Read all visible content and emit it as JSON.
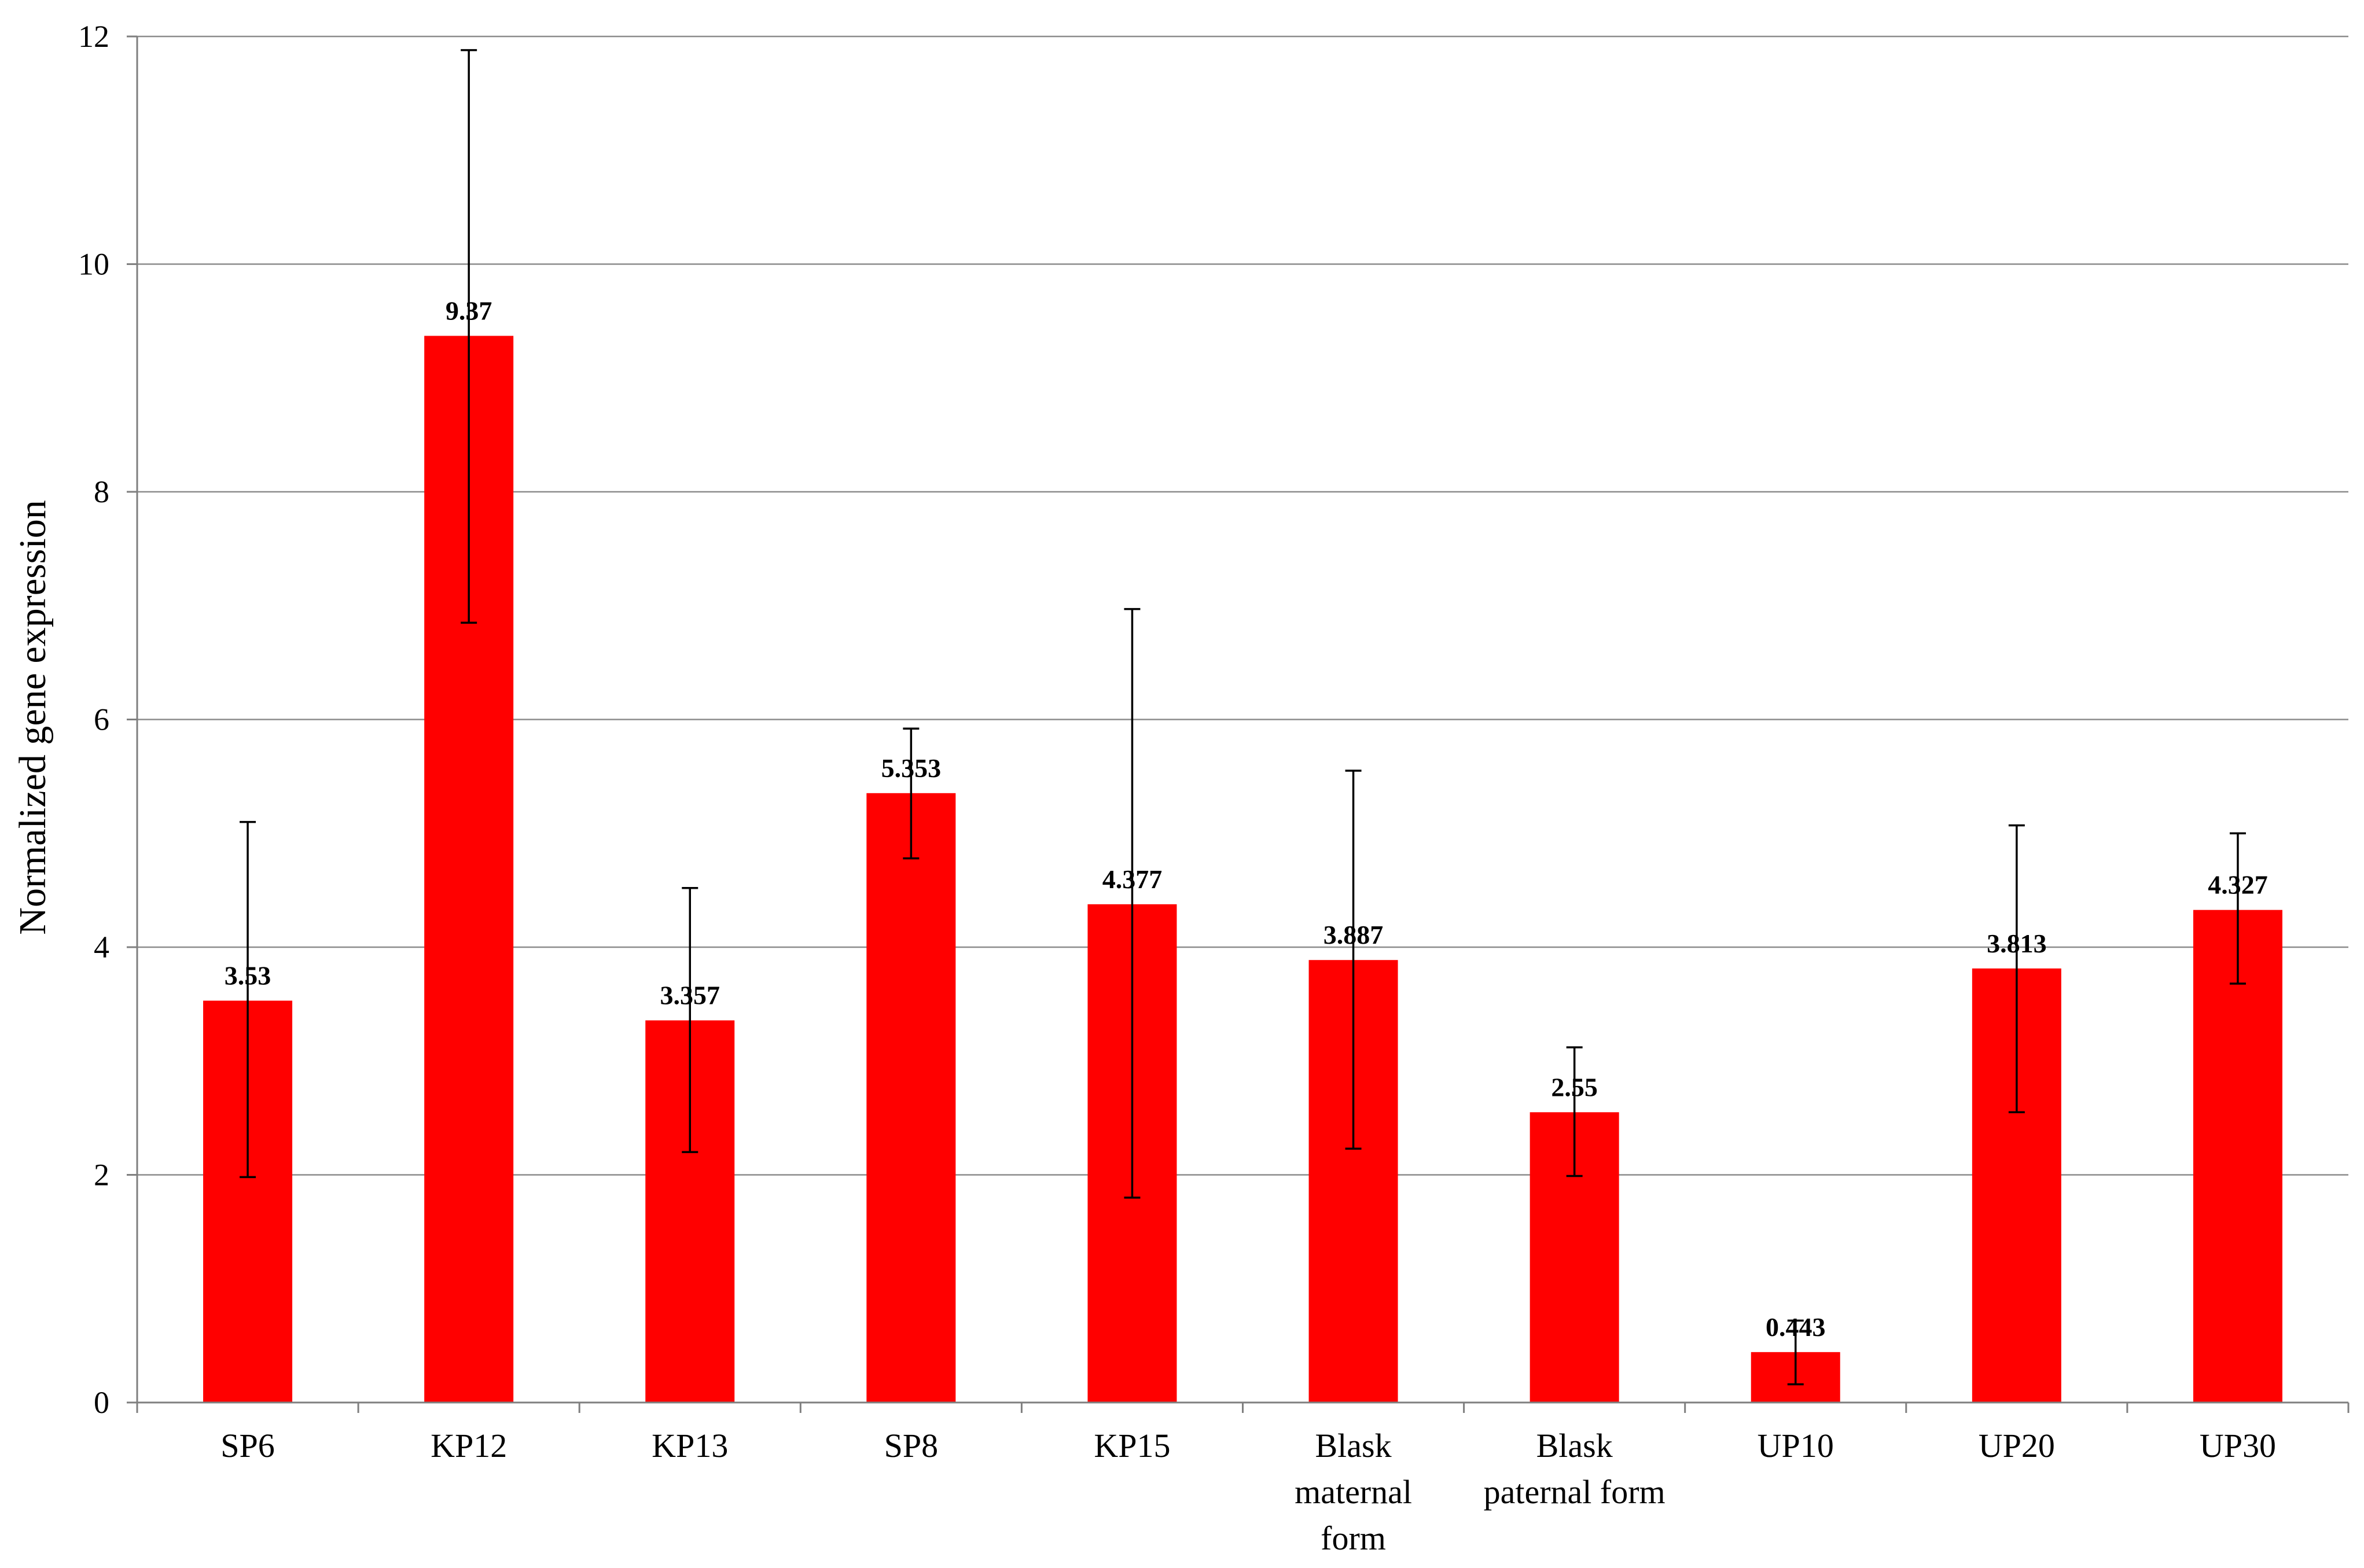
{
  "chart_data": {
    "type": "bar",
    "categories": [
      [
        "SP6"
      ],
      [
        "KP12"
      ],
      [
        "KP13"
      ],
      [
        "SP8"
      ],
      [
        "KP15"
      ],
      [
        "Blask",
        "maternal",
        "form"
      ],
      [
        "Blask",
        "paternal form"
      ],
      [
        "UP10"
      ],
      [
        "UP20"
      ],
      [
        "UP30"
      ]
    ],
    "values": [
      3.53,
      9.37,
      3.357,
      5.353,
      4.377,
      3.887,
      2.55,
      0.443,
      3.813,
      4.327
    ],
    "data_labels": [
      "3.53",
      "9.37",
      "3.357",
      "5.353",
      "4.377",
      "3.887",
      "2.55",
      "0.443",
      "3.813",
      "4.327"
    ],
    "error_low": [
      1.98,
      6.85,
      2.2,
      4.78,
      1.8,
      2.23,
      1.99,
      0.16,
      2.55,
      3.68
    ],
    "error_high": [
      5.1,
      11.88,
      4.52,
      5.92,
      6.97,
      5.55,
      3.12,
      0.72,
      5.07,
      5.0
    ],
    "ylabel": "Normalized  gene expression",
    "xlabel": "",
    "title": "",
    "ylim": [
      0,
      12
    ],
    "yticks": [
      "0",
      "2",
      "4",
      "6",
      "8",
      "10",
      "12"
    ],
    "grid": true,
    "bar_color": "#ff0000",
    "error_bar_color": "#000000"
  }
}
